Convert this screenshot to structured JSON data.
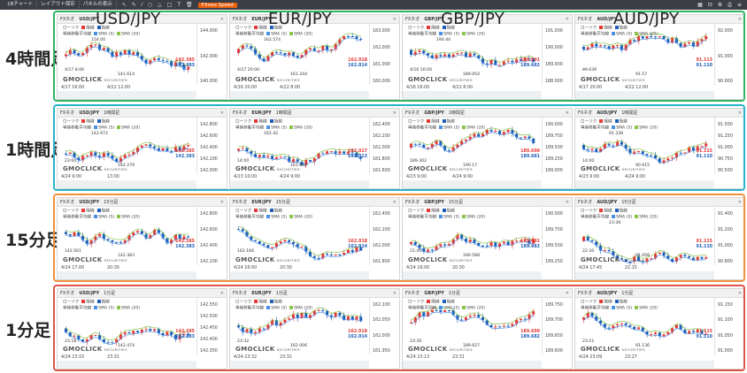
{
  "toolbar": {
    "items": [
      "1Bチャート",
      "レイアウト保存",
      "パネルの表示"
    ],
    "speed": "FXneo Speed"
  },
  "pairs": [
    "USD/JPY",
    "EUR/JPY",
    "GBP/JPY",
    "AUD/JPY"
  ],
  "rows": [
    {
      "label": "4時間足",
      "color": "#2fb463"
    },
    {
      "label": "1時間足",
      "color": "#27b3c8"
    },
    {
      "label": "15分足",
      "color": "#f0903c"
    },
    {
      "label": "1分足",
      "color": "#e05448"
    }
  ],
  "legend": {
    "chart_type": "ローソク",
    "up": "陽線",
    "down": "陰線",
    "ma": "単純移動平均線",
    "sma": "SMA (5)",
    "sma20": "SMA (20)"
  },
  "panel_tag": "FXネオ",
  "brand": "GMOCLICK",
  "brand_sub": "SECURITIES",
  "panels": [
    [
      {
        "pair": "USD/JPY",
        "tf": "",
        "axis": [
          "144.000",
          "142.000",
          "140.000"
        ],
        "price": "142.385",
        "price2": "142.383",
        "times": [
          "4/17 16:00",
          "4/22 12:00"
        ],
        "notes": [
          "4/17 8:00",
          "141.614",
          "154.00"
        ],
        "seed": 1
      },
      {
        "pair": "EUR/JPY",
        "tf": "",
        "axis": [
          "163.000",
          "162.000",
          "161.000",
          "160.000"
        ],
        "price": "162.018",
        "price2": "162.014",
        "times": [
          "4/16 20:00",
          "4/22 8:00"
        ],
        "notes": [
          "4/17 20:00",
          "161.244",
          "162.574"
        ],
        "seed": 2
      },
      {
        "pair": "GBP/JPY",
        "tf": "",
        "axis": [
          "191.000",
          "190.000",
          "189.000",
          "188.000"
        ],
        "price": "189.691",
        "price2": "189.682",
        "times": [
          "4/16 16:00",
          "4/22 8:00"
        ],
        "notes": [
          "4/16 16:00",
          "189.054",
          "190.44"
        ],
        "seed": 3
      },
      {
        "pair": "AUD/JPY",
        "tf": "",
        "axis": [
          "92.000",
          "91.000",
          "90.000"
        ],
        "price": "91.113",
        "price2": "91.110",
        "times": [
          "4/17 20:00",
          "4/22 12:00"
        ],
        "notes": [
          "89.639",
          "91.57"
        ],
        "seed": 4
      }
    ],
    [
      {
        "pair": "USD/JPY",
        "tf": "1時間足",
        "axis": [
          "142.800",
          "142.600",
          "142.400",
          "142.200",
          "142.000"
        ],
        "price": "142.385",
        "price2": "142.383",
        "times": [
          "4/24 9:00",
          "13:00"
        ],
        "notes": [
          "23:00",
          "142.279",
          "142.672"
        ],
        "seed": 5
      },
      {
        "pair": "EUR/JPY",
        "tf": "1時間足",
        "axis": [
          "162.400",
          "162.200",
          "162.000",
          "161.800",
          "161.600"
        ],
        "price": "162.017",
        "price2": "162.013",
        "times": [
          "4/23 10:00",
          "4/24 9:00"
        ],
        "notes": [
          "14:00",
          "161.842",
          "162.42"
        ],
        "seed": 6
      },
      {
        "pair": "GBP/JPY",
        "tf": "1時間足",
        "axis": [
          "190.000",
          "189.750",
          "189.500",
          "189.250",
          "189.000"
        ],
        "price": "189.690",
        "price2": "189.681",
        "times": [
          "4/23 9:00",
          "4/24 9:00"
        ],
        "notes": [
          "189.302",
          "190.17"
        ],
        "seed": 7
      },
      {
        "pair": "AUD/JPY",
        "tf": "1時間足",
        "axis": [
          "91.500",
          "91.250",
          "91.000",
          "90.750",
          "90.500"
        ],
        "price": "91.115",
        "price2": "91.110",
        "times": [
          "4/23 9:00",
          "4/24 9:00"
        ],
        "notes": [
          "14:00",
          "90.915",
          "91.338"
        ],
        "seed": 8
      }
    ],
    [
      {
        "pair": "USD/JPY",
        "tf": "15分足",
        "axis": [
          "142.800",
          "142.600",
          "142.400",
          "142.200"
        ],
        "price": "142.385",
        "price2": "142.383",
        "times": [
          "4/24 17:00",
          "20:30"
        ],
        "notes": [
          "142.561",
          "142.383"
        ],
        "seed": 9
      },
      {
        "pair": "EUR/JPY",
        "tf": "15分足",
        "axis": [
          "162.400",
          "162.200",
          "162.000",
          "161.800"
        ],
        "price": "162.018",
        "price2": "162.014",
        "times": [
          "4/24 16:00",
          "20:30"
        ],
        "notes": [
          "162.166"
        ],
        "seed": 10
      },
      {
        "pair": "GBP/JPY",
        "tf": "15分足",
        "axis": [
          "190.000",
          "189.750",
          "189.500",
          "189.250"
        ],
        "price": "189.691",
        "price2": "189.682",
        "times": [
          "4/24 16:00",
          "20:30"
        ],
        "notes": [
          "21:45",
          "189.588"
        ],
        "seed": 11
      },
      {
        "pair": "AUD/JPY",
        "tf": "15分足",
        "axis": [
          "91.400",
          "91.200",
          "91.000",
          "90.800"
        ],
        "price": "91.115",
        "price2": "91.110",
        "times": [
          "4/24 17:45",
          "21:15"
        ],
        "notes": [
          "22:30",
          "91.008",
          "23:36"
        ],
        "seed": 12
      }
    ],
    [
      {
        "pair": "USD/JPY",
        "tf": "1分足",
        "axis": [
          "142.550",
          "142.500",
          "142.450",
          "142.400",
          "142.350"
        ],
        "price": "142.385",
        "price2": "142.383",
        "times": [
          "4/24 23:15",
          "23:31"
        ],
        "notes": [
          "23:18",
          "142.474"
        ],
        "seed": 13
      },
      {
        "pair": "EUR/JPY",
        "tf": "1分足",
        "axis": [
          "162.100",
          "162.050",
          "162.000",
          "161.950"
        ],
        "price": "162.018",
        "price2": "162.014",
        "times": [
          "4/24 23:32",
          "23:32"
        ],
        "notes": [
          "23:32",
          "162.006"
        ],
        "seed": 14
      },
      {
        "pair": "GBP/JPY",
        "tf": "1分足",
        "axis": [
          "189.750",
          "189.700",
          "189.650",
          "189.600"
        ],
        "price": "189.690",
        "price2": "189.682",
        "times": [
          "4/24 23:13",
          "23:31"
        ],
        "notes": [
          "23:30",
          "189.627"
        ],
        "seed": 15
      },
      {
        "pair": "AUD/JPY",
        "tf": "1分足",
        "axis": [
          "91.150",
          "91.100",
          "91.050",
          "91.000"
        ],
        "price": "91.115",
        "price2": "91.110",
        "times": [
          "4/24 23:09",
          "23:27"
        ],
        "notes": [
          "23:21",
          "91.136"
        ],
        "seed": 16
      }
    ]
  ]
}
